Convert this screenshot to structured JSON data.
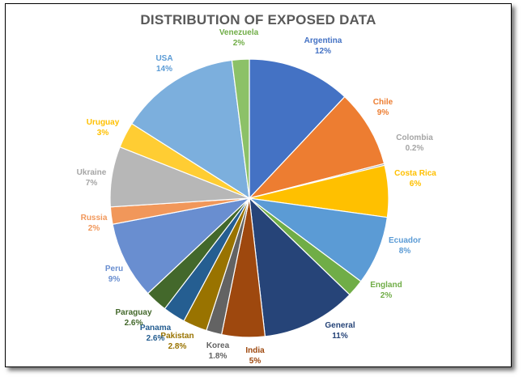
{
  "chart_data": {
    "type": "pie",
    "title": "DISTRIBUTION OF EXPOSED DATA",
    "slices": [
      {
        "label": "Argentina",
        "value": 12,
        "value_text": "12%",
        "color": "#4472C4"
      },
      {
        "label": "Chile",
        "value": 9,
        "value_text": "9%",
        "color": "#ED7D31"
      },
      {
        "label": "Colombia",
        "value": 0.2,
        "value_text": "0.2%",
        "color": "#A5A5A5"
      },
      {
        "label": "Costa Rica",
        "value": 6,
        "value_text": "6%",
        "color": "#FFC000"
      },
      {
        "label": "Ecuador",
        "value": 8,
        "value_text": "8%",
        "color": "#5B9BD5"
      },
      {
        "label": "England",
        "value": 2,
        "value_text": "2%",
        "color": "#70AD47"
      },
      {
        "label": "General",
        "value": 11,
        "value_text": "11%",
        "color": "#264478"
      },
      {
        "label": "India",
        "value": 5,
        "value_text": "5%",
        "color": "#9E480E"
      },
      {
        "label": "Korea",
        "value": 1.8,
        "value_text": "1.8%",
        "color": "#636363"
      },
      {
        "label": "Pakistan",
        "value": 2.8,
        "value_text": "2.8%",
        "color": "#997300"
      },
      {
        "label": "Panama",
        "value": 2.6,
        "value_text": "2.6%",
        "color": "#255E91"
      },
      {
        "label": "Paraguay",
        "value": 2.6,
        "value_text": "2.6%",
        "color": "#43682B"
      },
      {
        "label": "Peru",
        "value": 9,
        "value_text": "9%",
        "color": "#698ED0"
      },
      {
        "label": "Russia",
        "value": 2,
        "value_text": "2%",
        "color": "#F1975A"
      },
      {
        "label": "Ukraine",
        "value": 7,
        "value_text": "7%",
        "color": "#B7B7B7"
      },
      {
        "label": "Uruguay",
        "value": 3,
        "value_text": "3%",
        "color": "#FFCD33"
      },
      {
        "label": "USA",
        "value": 14,
        "value_text": "14%",
        "color": "#7CAFDD"
      },
      {
        "label": "Venezuela",
        "value": 2,
        "value_text": "2%",
        "color": "#8CC168"
      }
    ],
    "label_colors": {
      "Argentina": "#4472C4",
      "Chile": "#ED7D31",
      "Colombia": "#A5A5A5",
      "Costa Rica": "#FFC000",
      "Ecuador": "#5B9BD5",
      "England": "#70AD47",
      "General": "#264478",
      "India": "#9E480E",
      "Korea": "#636363",
      "Pakistan": "#997300",
      "Panama": "#255E91",
      "Paraguay": "#43682B",
      "Peru": "#698ED0",
      "Russia": "#F1975A",
      "Ukraine": "#A5A5A5",
      "Uruguay": "#FFC000",
      "USA": "#5B9BD5",
      "Venezuela": "#70AD47"
    },
    "legend": "none",
    "data_labels": "outside"
  }
}
